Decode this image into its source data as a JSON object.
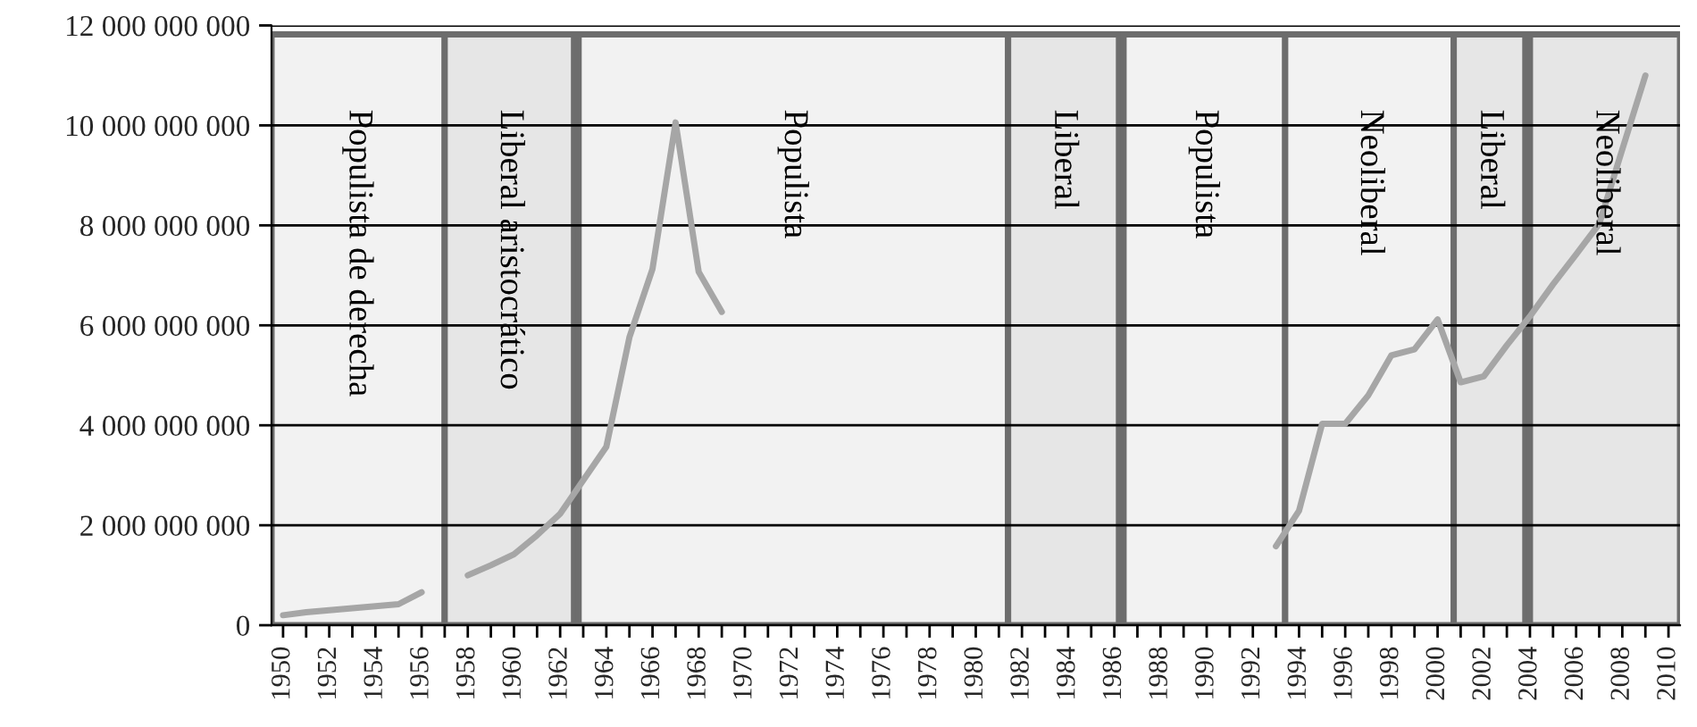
{
  "chart_data": {
    "type": "line",
    "x": [
      1950,
      1951,
      1952,
      1953,
      1954,
      1955,
      1956,
      1957,
      1958,
      1959,
      1960,
      1961,
      1962,
      1963,
      1964,
      1965,
      1966,
      1967,
      1968,
      1969,
      1970,
      1971,
      1972,
      1973,
      1974,
      1975,
      1976,
      1977,
      1978,
      1979,
      1980,
      1981,
      1982,
      1983,
      1984,
      1985,
      1986,
      1987,
      1988,
      1989,
      1990,
      1991,
      1992,
      1993,
      1994,
      1995,
      1996,
      1997,
      1998,
      1999,
      2000,
      2001,
      2002,
      2003,
      2004,
      2005,
      2006,
      2007,
      2008,
      2009
    ],
    "series": [
      {
        "color": "#a6a6a6",
        "values": [
          200000000,
          260000000,
          300000000,
          340000000,
          380000000,
          420000000,
          660000000,
          null,
          1000000000,
          1200000000,
          1420000000,
          1800000000,
          2230000000,
          2900000000,
          3570000000,
          5760000000,
          7130000000,
          10060000000,
          7070000000,
          6270000000,
          null,
          null,
          null,
          null,
          null,
          null,
          null,
          null,
          null,
          null,
          null,
          null,
          null,
          null,
          null,
          null,
          null,
          null,
          null,
          null,
          null,
          null,
          null,
          1580000000,
          2290000000,
          4030000000,
          4030000000,
          4600000000,
          5400000000,
          5520000000,
          6120000000,
          4860000000,
          4980000000,
          5600000000,
          6180000000,
          6820000000,
          7420000000,
          8030000000,
          9520000000,
          11000000000
        ]
      }
    ],
    "xlim": [
      1949.5,
      2010.5
    ],
    "xticks": [
      1950,
      {
        "value": 1951,
        "label": null
      },
      1952,
      {
        "value": 1953,
        "label": null
      },
      1954,
      {
        "value": 1955,
        "label": null
      },
      1956,
      {
        "value": 1957,
        "label": null
      },
      1958,
      {
        "value": 1959,
        "label": null
      },
      1960,
      {
        "value": 1961,
        "label": null
      },
      1962,
      {
        "value": 1963,
        "label": null
      },
      1964,
      {
        "value": 1965,
        "label": null
      },
      1966,
      {
        "value": 1967,
        "label": null
      },
      1968,
      {
        "value": 1969,
        "label": null
      },
      1970,
      {
        "value": 1971,
        "label": null
      },
      1972,
      {
        "value": 1973,
        "label": null
      },
      1974,
      {
        "value": 1975,
        "label": null
      },
      1976,
      {
        "value": 1977,
        "label": null
      },
      1978,
      {
        "value": 1979,
        "label": null
      },
      1980,
      {
        "value": 1981,
        "label": null
      },
      1982,
      {
        "value": 1983,
        "label": null
      },
      1984,
      {
        "value": 1985,
        "label": null
      },
      1986,
      {
        "value": 1987,
        "label": null
      },
      1988,
      {
        "value": 1989,
        "label": null
      },
      1990,
      {
        "value": 1991,
        "label": null
      },
      1992,
      {
        "value": 1993,
        "label": null
      },
      1994,
      {
        "value": 1995,
        "label": null
      },
      1996,
      {
        "value": 1997,
        "label": null
      },
      1998,
      {
        "value": 1999,
        "label": null
      },
      2000,
      {
        "value": 2001,
        "label": null
      },
      2002,
      {
        "value": 2003,
        "label": null
      },
      2004,
      {
        "value": 2005,
        "label": null
      },
      2006,
      {
        "value": 2007,
        "label": null
      },
      2008,
      {
        "value": 2009,
        "label": null
      },
      2010
    ],
    "ylim": [
      0,
      12000000000
    ],
    "yticks": [
      {
        "value": 0,
        "label": "0"
      },
      {
        "value": 2000000000,
        "label": "2 000 000 000"
      },
      {
        "value": 4000000000,
        "label": "4 000 000 000"
      },
      {
        "value": 6000000000,
        "label": "6 000 000 000"
      },
      {
        "value": 8000000000,
        "label": "8 000 000 000"
      },
      {
        "value": 10000000000,
        "label": "10 000 000 000"
      },
      {
        "value": 12000000000,
        "label": "12 000 000 000"
      }
    ],
    "grid": "y",
    "marker": "none",
    "line_style": "solid",
    "bands": [
      {
        "axis": "x",
        "from": 1949.5,
        "to": 1957,
        "label": "Populista de derecha",
        "color": "#f2f2f2"
      },
      {
        "axis": "x",
        "from": 1957,
        "to": 1962.6,
        "label": "Liberal aristocrático",
        "color": "#e6e6e6"
      },
      {
        "axis": "x",
        "from": 1962.8,
        "to": 1981.4,
        "label": "Populista",
        "color": "#f2f2f2"
      },
      {
        "axis": "x",
        "from": 1981.4,
        "to": 1986.2,
        "label": "Liberal",
        "color": "#e6e6e6"
      },
      {
        "axis": "x",
        "from": 1986.4,
        "to": 1993.4,
        "label": "Populista",
        "color": "#f2f2f2"
      },
      {
        "axis": "x",
        "from": 1993.4,
        "to": 2000.7,
        "label": "Neoliberal",
        "color": "#f2f2f2"
      },
      {
        "axis": "x",
        "from": 2000.7,
        "to": 2003.8,
        "label": "Liberal",
        "color": "#e6e6e6"
      },
      {
        "axis": "x",
        "from": 2004,
        "to": 2010.5,
        "label": "Neoliberal",
        "color": "#e6e6e6"
      }
    ]
  }
}
